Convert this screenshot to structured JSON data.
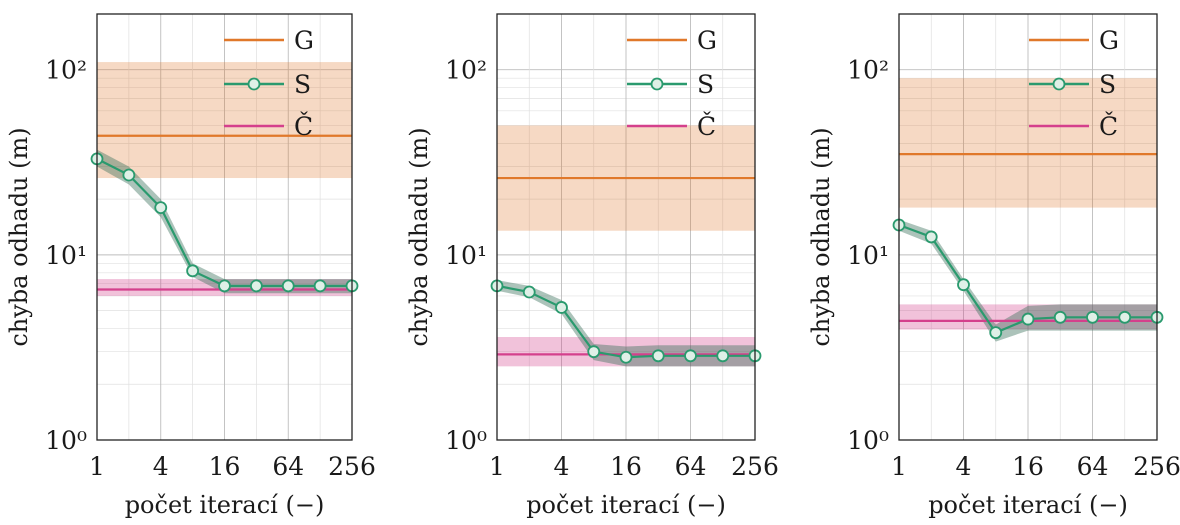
{
  "chart_data": [
    {
      "type": "line",
      "xlabel": "počet iterací (−)",
      "ylabel": "chyba odhadu (m)",
      "x_scale": "log2",
      "y_scale": "log10",
      "xlim": [
        1,
        256
      ],
      "ylim": [
        1,
        200
      ],
      "x_ticks": [
        "1",
        "4",
        "16",
        "64",
        "256"
      ],
      "y_ticks": [
        "10⁰",
        "10¹",
        "10²"
      ],
      "grid": true,
      "legend_position": "top-right",
      "series": [
        {
          "name": "G",
          "color": "#e0782a",
          "value": 44,
          "band": [
            26,
            110
          ]
        },
        {
          "name": "S",
          "color": "#2a9a6e",
          "marker": "circle",
          "x": [
            1,
            2,
            4,
            8,
            16,
            32,
            64,
            128,
            256
          ],
          "y": [
            33,
            27,
            18,
            8.2,
            6.8,
            6.8,
            6.8,
            6.8,
            6.8
          ],
          "band_low": [
            30,
            24,
            16,
            7.6,
            6.2,
            6.2,
            6.2,
            6.2,
            6.2
          ],
          "band_high": [
            37,
            30,
            20,
            9.0,
            7.4,
            7.4,
            7.4,
            7.4,
            7.4
          ]
        },
        {
          "name": "Č",
          "color": "#d4408c",
          "value": 6.5,
          "band": [
            6.0,
            7.4
          ]
        }
      ]
    },
    {
      "type": "line",
      "xlabel": "počet iterací (−)",
      "ylabel": "chyba odhadu (m)",
      "x_scale": "log2",
      "y_scale": "log10",
      "xlim": [
        1,
        256
      ],
      "ylim": [
        1,
        200
      ],
      "x_ticks": [
        "1",
        "4",
        "16",
        "64",
        "256"
      ],
      "y_ticks": [
        "10⁰",
        "10¹",
        "10²"
      ],
      "grid": true,
      "legend_position": "top-right",
      "series": [
        {
          "name": "G",
          "color": "#e0782a",
          "value": 26,
          "band": [
            13.5,
            50
          ]
        },
        {
          "name": "S",
          "color": "#2a9a6e",
          "marker": "circle",
          "x": [
            1,
            2,
            4,
            8,
            16,
            32,
            64,
            128,
            256
          ],
          "y": [
            6.8,
            6.3,
            5.2,
            3.0,
            2.8,
            2.85,
            2.85,
            2.85,
            2.85
          ],
          "band_low": [
            6.4,
            5.9,
            4.8,
            2.7,
            2.5,
            2.5,
            2.5,
            2.5,
            2.5
          ],
          "band_high": [
            7.3,
            6.8,
            5.7,
            3.3,
            3.2,
            3.25,
            3.25,
            3.25,
            3.25
          ]
        },
        {
          "name": "Č",
          "color": "#d4408c",
          "value": 2.9,
          "band": [
            2.5,
            3.6
          ]
        }
      ]
    },
    {
      "type": "line",
      "xlabel": "počet iterací (−)",
      "ylabel": "chyba odhadu (m)",
      "x_scale": "log2",
      "y_scale": "log10",
      "xlim": [
        1,
        256
      ],
      "ylim": [
        1,
        200
      ],
      "x_ticks": [
        "1",
        "4",
        "16",
        "64",
        "256"
      ],
      "y_ticks": [
        "10⁰",
        "10¹",
        "10²"
      ],
      "grid": true,
      "legend_position": "top-right",
      "series": [
        {
          "name": "G",
          "color": "#e0782a",
          "value": 35,
          "band": [
            18,
            90
          ]
        },
        {
          "name": "S",
          "color": "#2a9a6e",
          "marker": "circle",
          "x": [
            1,
            2,
            4,
            8,
            16,
            32,
            64,
            128,
            256
          ],
          "y": [
            14.5,
            12.5,
            6.9,
            3.8,
            4.5,
            4.6,
            4.6,
            4.6,
            4.6
          ],
          "band_low": [
            13.5,
            11.5,
            6.4,
            3.4,
            3.9,
            3.9,
            3.9,
            3.9,
            3.9
          ],
          "band_high": [
            15.5,
            13.5,
            7.4,
            4.2,
            5.3,
            5.4,
            5.4,
            5.4,
            5.4
          ]
        },
        {
          "name": "Č",
          "color": "#d4408c",
          "value": 4.4,
          "band": [
            3.95,
            5.4
          ]
        }
      ]
    }
  ]
}
